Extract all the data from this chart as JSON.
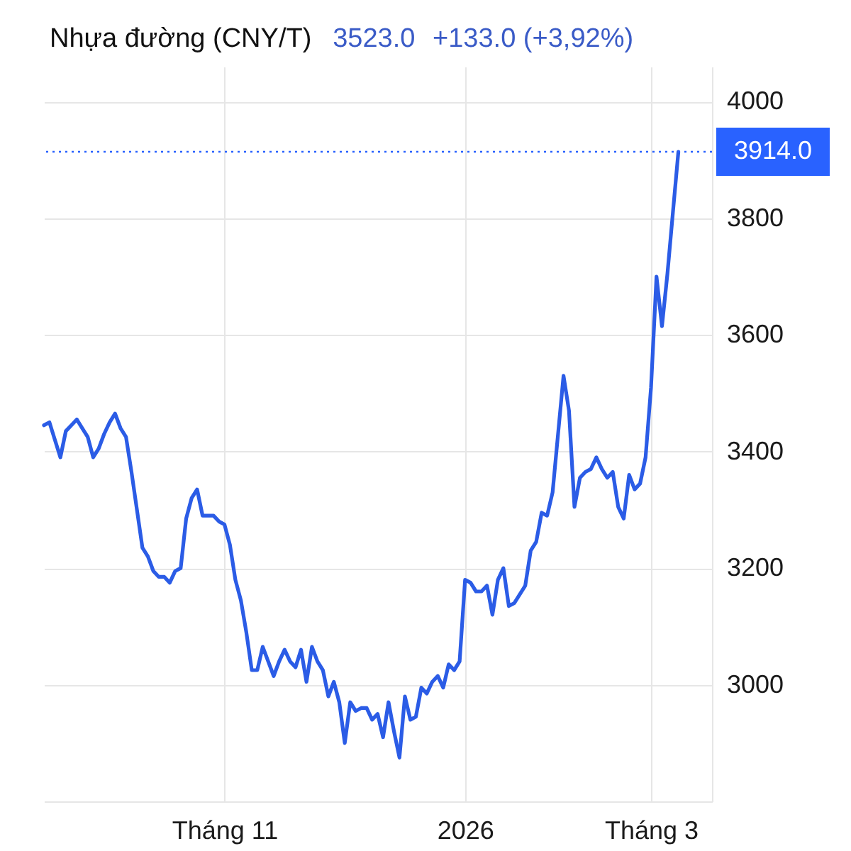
{
  "chart_data": {
    "type": "line",
    "title": "Nhựa đường (CNY/T)",
    "annotations": [
      "3523.0",
      "+133.0 (+3,92%)"
    ],
    "categories": [
      null,
      null,
      null,
      null,
      null,
      null,
      null,
      null,
      null,
      null,
      null,
      null,
      null,
      null,
      null,
      null,
      null,
      null,
      null,
      null,
      null,
      null,
      null,
      null,
      null,
      null,
      null,
      null,
      null,
      null,
      null,
      null,
      null,
      "Tháng 11",
      null,
      null,
      null,
      null,
      null,
      null,
      null,
      null,
      null,
      null,
      null,
      null,
      null,
      null,
      null,
      null,
      null,
      null,
      null,
      null,
      null,
      null,
      null,
      null,
      null,
      null,
      null,
      null,
      null,
      null,
      null,
      null,
      null,
      null,
      null,
      null,
      null,
      null,
      null,
      null,
      null,
      null,
      null,
      "2026",
      null,
      null,
      null,
      null,
      null,
      null,
      null,
      null,
      null,
      null,
      null,
      null,
      null,
      null,
      null,
      null,
      null,
      null,
      null,
      null,
      null,
      null,
      null,
      null,
      null,
      null,
      null,
      null,
      null,
      null,
      null,
      null,
      null,
      "Tháng 3",
      null,
      null,
      null,
      null,
      null
    ],
    "series": [
      {
        "color": "#2b5ce6",
        "values": [
          3445,
          3450,
          3420,
          3390,
          3435,
          3445,
          3455,
          3440,
          3425,
          3390,
          3405,
          3430,
          3450,
          3465,
          3440,
          3425,
          3365,
          3300,
          3235,
          3220,
          3195,
          3185,
          3185,
          3175,
          3195,
          3200,
          3285,
          3320,
          3335,
          3290,
          3290,
          3290,
          3280,
          3275,
          3240,
          3180,
          3145,
          3090,
          3025,
          3025,
          3065,
          3040,
          3015,
          3040,
          3060,
          3040,
          3030,
          3060,
          3005,
          3065,
          3040,
          3025,
          2980,
          3005,
          2970,
          2900,
          2970,
          2955,
          2960,
          2960,
          2940,
          2950,
          2910,
          2970,
          2920,
          2875,
          2980,
          2940,
          2945,
          2995,
          2985,
          3005,
          3015,
          2995,
          3035,
          3025,
          3040,
          3180,
          3175,
          3160,
          3160,
          3170,
          3120,
          3180,
          3200,
          3135,
          3140,
          3155,
          3170,
          3230,
          3245,
          3295,
          3290,
          3330,
          3430,
          3530,
          3470,
          3305,
          3355,
          3365,
          3370,
          3390,
          3370,
          3355,
          3365,
          3305,
          3285,
          3360,
          3335,
          3345,
          3390,
          3510,
          3700,
          3615,
          3705,
          3810,
          3914
        ]
      }
    ],
    "ylim": [
      2800,
      4060
    ],
    "yticks": [
      3000,
      3200,
      3400,
      3600,
      3800,
      4000
    ],
    "ref_lines": [
      {
        "axis": "y",
        "value": 3914,
        "label": "3914.0",
        "color": "#2962ff",
        "line_style": "dotted"
      }
    ],
    "grid": true,
    "line_style": "solid"
  }
}
